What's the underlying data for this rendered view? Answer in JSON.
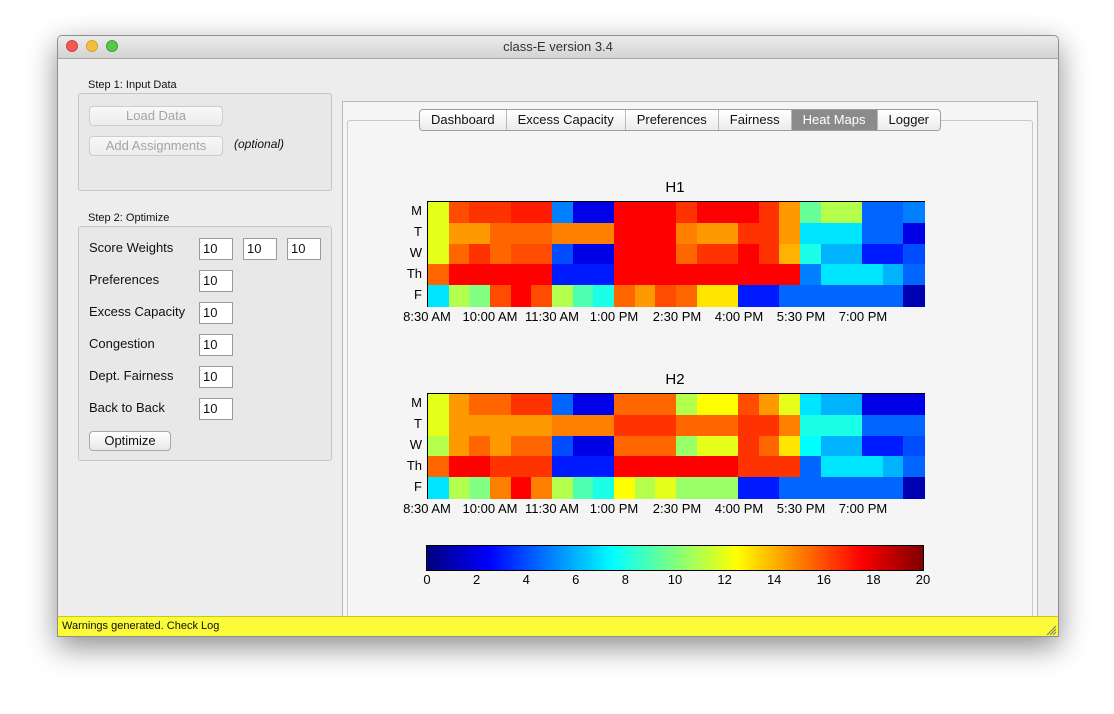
{
  "window": {
    "title": "class-E   version 3.4"
  },
  "step1": {
    "label": "Step 1: Input Data",
    "load_data": "Load Data",
    "add_assignments": "Add Assignments",
    "optional": "(optional)"
  },
  "step2": {
    "label": "Step 2: Optimize",
    "score_weights_label": "Score Weights",
    "score_weights": [
      "10",
      "10",
      "10"
    ],
    "fields": [
      {
        "label": "Preferences",
        "value": "10"
      },
      {
        "label": "Excess Capacity",
        "value": "10"
      },
      {
        "label": "Congestion",
        "value": "10"
      },
      {
        "label": "Dept. Fairness",
        "value": "10"
      },
      {
        "label": "Back to Back",
        "value": "10"
      }
    ],
    "optimize": "Optimize"
  },
  "tabs": [
    {
      "label": "Dashboard",
      "active": false
    },
    {
      "label": "Excess Capacity",
      "active": false
    },
    {
      "label": "Preferences",
      "active": false
    },
    {
      "label": "Fairness",
      "active": false
    },
    {
      "label": "Heat Maps",
      "active": true
    },
    {
      "label": "Logger",
      "active": false
    }
  ],
  "status": {
    "text": "Warnings generated. Check Log",
    "color": "#fbfb3a"
  },
  "chart_data": {
    "type": "heatmap",
    "colormap": "jet",
    "vmin": 0,
    "vmax": 20,
    "colorbar_ticks": [
      "0",
      "2",
      "4",
      "6",
      "8",
      "10",
      "12",
      "14",
      "16",
      "18",
      "20"
    ],
    "days": [
      "M",
      "T",
      "W",
      "Th",
      "F"
    ],
    "time_ticks": [
      "8:30 AM",
      "10:00 AM",
      "11:30 AM",
      "1:00 PM",
      "2:30 PM",
      "4:00 PM",
      "5:30 PM",
      "7:00 PM"
    ],
    "maps": [
      {
        "title": "H1",
        "values": [
          [
            12,
            16,
            16.5,
            16.5,
            17,
            17,
            5,
            2,
            2,
            17.5,
            17.5,
            17.5,
            16.5,
            17.5,
            17.5,
            17.5,
            16.5,
            14.5,
            9.5,
            11,
            11,
            4.5,
            4.5,
            5
          ],
          [
            12,
            14.5,
            14.5,
            15.5,
            15.5,
            15.5,
            15,
            15,
            15,
            17.5,
            17.5,
            17.5,
            15,
            14.5,
            14.5,
            16.5,
            16.5,
            14.5,
            7,
            7,
            7,
            4.5,
            4.5,
            2
          ],
          [
            12,
            15.5,
            16.5,
            15.5,
            16,
            16,
            4,
            2,
            2,
            17.5,
            17.5,
            17.5,
            15.5,
            16.5,
            16.5,
            17.5,
            16.5,
            14,
            8,
            6,
            6,
            3,
            3,
            4
          ],
          [
            15.5,
            17.5,
            17.5,
            17.5,
            17.5,
            17.5,
            3,
            3,
            3,
            17.5,
            17.5,
            17.5,
            17.5,
            17.5,
            17.5,
            17.5,
            17.5,
            17.5,
            5,
            7,
            7,
            7,
            6,
            4.5
          ],
          [
            7,
            11,
            10,
            16,
            17.5,
            16,
            11,
            9,
            8,
            15.5,
            14.5,
            16,
            15.5,
            13,
            13,
            3,
            3,
            4.5,
            4.5,
            4.5,
            4.5,
            4.5,
            4.5,
            1
          ]
        ]
      },
      {
        "title": "H2",
        "values": [
          [
            12,
            14.5,
            15.5,
            15.5,
            16.5,
            16.5,
            4.5,
            2,
            2,
            15.5,
            15.5,
            15.5,
            11,
            12.5,
            12.5,
            16,
            14.5,
            12,
            7,
            6,
            6,
            2,
            2,
            2
          ],
          [
            12,
            14.5,
            14.5,
            14.5,
            14.5,
            14.5,
            15,
            15,
            15,
            16.5,
            16.5,
            16.5,
            15.5,
            15.5,
            15.5,
            16.5,
            16.5,
            15,
            8,
            8,
            8,
            4.5,
            4.5,
            4.5
          ],
          [
            11,
            14.5,
            15.5,
            14.5,
            15.5,
            15.5,
            4,
            2,
            2,
            15.5,
            15.5,
            15.5,
            10.5,
            12,
            12,
            16.5,
            15.5,
            13,
            7.5,
            6,
            6,
            3,
            3,
            4
          ],
          [
            15.5,
            17.5,
            17.5,
            16.5,
            16.5,
            16.5,
            3,
            3,
            3,
            17.5,
            17.5,
            17.5,
            17.5,
            17.5,
            17.5,
            16.5,
            16.5,
            16.5,
            4.5,
            7,
            7,
            7,
            6,
            4.5
          ],
          [
            7,
            11,
            10,
            15,
            17.5,
            15,
            11,
            9,
            8,
            12.5,
            11,
            12,
            10.5,
            10.5,
            10.5,
            3,
            3,
            4.5,
            4.5,
            4.5,
            4.5,
            4.5,
            4.5,
            1
          ]
        ]
      }
    ]
  }
}
